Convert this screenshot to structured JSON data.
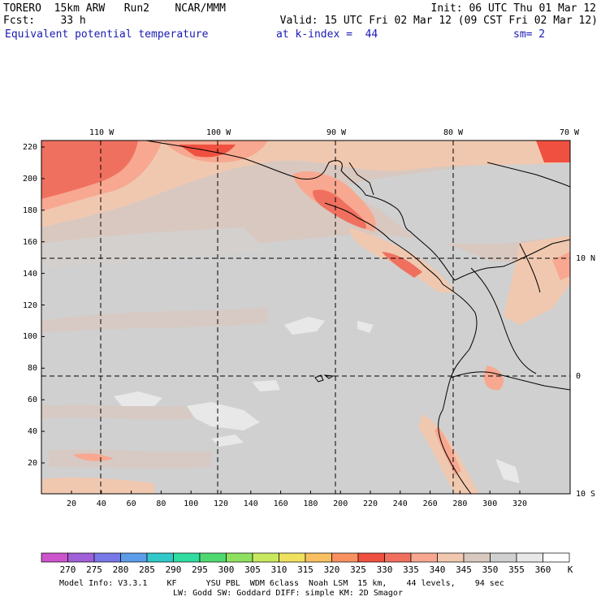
{
  "header": {
    "line1_left": "TORERO  15km ARW   Run2    NCAR/MMM",
    "line1_right": "Init: 06 UTC Thu 01 Mar 12",
    "line2_left": "Fcst:    33 h",
    "line2_right": "Valid: 15 UTC Fri 02 Mar 12 (09 CST Fri 02 Mar 12)",
    "field_name": "Equivalent potential temperature",
    "level": "at k-index =  44",
    "smoothing": "sm= 2"
  },
  "map": {
    "lon_labels": [
      "110 W",
      "100 W",
      "90 W",
      "80 W",
      "70 W"
    ],
    "lat_labels": [
      "10 N",
      "0",
      "10 S"
    ],
    "y_ticks": [
      "220",
      "200",
      "180",
      "160",
      "140",
      "120",
      "100",
      "80",
      "60",
      "40",
      "20"
    ],
    "x_ticks": [
      "20",
      "40",
      "60",
      "80",
      "100",
      "120",
      "140",
      "160",
      "180",
      "200",
      "220",
      "240",
      "260",
      "280",
      "300",
      "320"
    ]
  },
  "colorbar": {
    "unit": "K",
    "labels": [
      "270",
      "275",
      "280",
      "285",
      "290",
      "295",
      "300",
      "305",
      "310",
      "315",
      "320",
      "325",
      "330",
      "335",
      "340",
      "345",
      "350",
      "355",
      "360"
    ],
    "colors": [
      "#cc55cc",
      "#a060d8",
      "#7878e8",
      "#5c9ce8",
      "#30c8c8",
      "#30dca0",
      "#50d870",
      "#90e060",
      "#c8e860",
      "#f0e060",
      "#f8c060",
      "#f89060",
      "#f05040",
      "#f07060",
      "#f8a890",
      "#f0c8b0",
      "#d8c8c0",
      "#d0d0d0",
      "#e8e8e8",
      "#ffffff"
    ]
  },
  "footer": {
    "line1": "Model Info: V3.3.1    KF      YSU PBL  WDM 6class  Noah LSM  15 km,    44 levels,    94 sec",
    "line2": "LW: Godd SW: Goddard DIFF: simple KM: 2D Smagor"
  }
}
